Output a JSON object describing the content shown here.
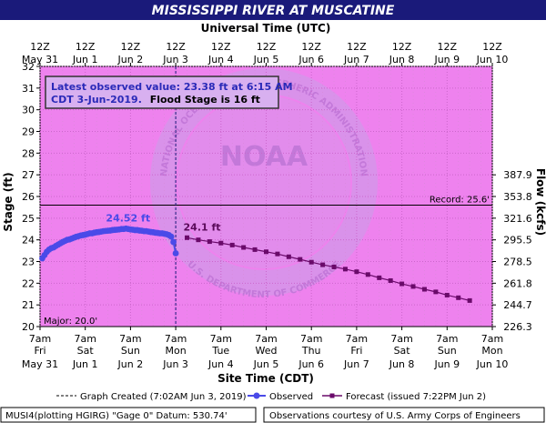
{
  "title": "MISSISSIPPI RIVER AT MUSCATINE",
  "top_axis_title": "Universal Time (UTC)",
  "bottom_axis_title": "Site Time (CDT)",
  "info_box": {
    "line1": "Latest observed value: 23.38 ft at 6:15 AM",
    "line2_a": "CDT 3-Jun-2019.",
    "line2_b": "Flood Stage is 16 ft"
  },
  "record_label": "Record: 25.6'",
  "major_label": "Major: 20.0'",
  "obs_peak_label": "24.52 ft",
  "fc_peak_label": "24.1 ft",
  "legend": {
    "created": "Graph Created (7:02AM Jun 3, 2019)",
    "observed": "Observed",
    "forecast": "Forecast (issued 7:22PM Jun 2)"
  },
  "footer": {
    "left": "MUSI4(plotting HGIRG) \"Gage 0\" Datum:  530.74'",
    "right": "Observations courtesy of U.S. Army Corps of Engineers"
  },
  "watermark": {
    "arc_text": "NATIONAL OCEANIC AND ATMOSPHERIC ADMINISTRATION",
    "bottom_text": "U.S. DEPARTMENT OF COMMERCE",
    "center_text": "NOAA"
  },
  "colors": {
    "plot_bg": "#ee82ee",
    "observed": "#4a4ae8",
    "forecast": "#6a0a6a",
    "title_bar": "#1a1a7a"
  },
  "chart_data": {
    "type": "line",
    "title": "MISSISSIPPI RIVER AT MUSCATINE",
    "ylabel": "Stage (ft)",
    "y2label": "Flow (kcfs)",
    "xlabel": "Site Time (CDT)",
    "ylim": [
      20,
      32
    ],
    "xlim_days": [
      0,
      10
    ],
    "y_ticks": [
      20,
      21,
      22,
      23,
      24,
      25,
      26,
      27,
      28,
      29,
      30,
      31,
      32
    ],
    "y2_ticks": [
      {
        "stage": 20,
        "label": "226.3"
      },
      {
        "stage": 21,
        "label": "244.7"
      },
      {
        "stage": 22,
        "label": "261.8"
      },
      {
        "stage": 23,
        "label": "278.5"
      },
      {
        "stage": 24,
        "label": "295.5"
      },
      {
        "stage": 25,
        "label": "321.6"
      },
      {
        "stage": 26,
        "label": "353.8"
      },
      {
        "stage": 27,
        "label": "387.9"
      }
    ],
    "x_ticks_bottom": [
      {
        "t": 0,
        "time": "7am",
        "day": "Fri",
        "date": "May 31"
      },
      {
        "t": 1,
        "time": "7am",
        "day": "Sat",
        "date": "Jun 1"
      },
      {
        "t": 2,
        "time": "7am",
        "day": "Sun",
        "date": "Jun 2"
      },
      {
        "t": 3,
        "time": "7am",
        "day": "Mon",
        "date": "Jun 3"
      },
      {
        "t": 4,
        "time": "7am",
        "day": "Tue",
        "date": "Jun 4"
      },
      {
        "t": 5,
        "time": "7am",
        "day": "Wed",
        "date": "Jun 5"
      },
      {
        "t": 6,
        "time": "7am",
        "day": "Thu",
        "date": "Jun 6"
      },
      {
        "t": 7,
        "time": "7am",
        "day": "Fri",
        "date": "Jun 7"
      },
      {
        "t": 8,
        "time": "7am",
        "day": "Sat",
        "date": "Jun 8"
      },
      {
        "t": 9,
        "time": "7am",
        "day": "Sun",
        "date": "Jun 9"
      },
      {
        "t": 10,
        "time": "7am",
        "day": "Mon",
        "date": "Jun 10"
      }
    ],
    "x_ticks_top": [
      {
        "t": 0,
        "time": "12Z",
        "date": "May 31"
      },
      {
        "t": 1,
        "time": "12Z",
        "date": "Jun 1"
      },
      {
        "t": 2,
        "time": "12Z",
        "date": "Jun 2"
      },
      {
        "t": 3,
        "time": "12Z",
        "date": "Jun 3"
      },
      {
        "t": 4,
        "time": "12Z",
        "date": "Jun 4"
      },
      {
        "t": 5,
        "time": "12Z",
        "date": "Jun 5"
      },
      {
        "t": 6,
        "time": "12Z",
        "date": "Jun 6"
      },
      {
        "t": 7,
        "time": "12Z",
        "date": "Jun 7"
      },
      {
        "t": 8,
        "time": "12Z",
        "date": "Jun 8"
      },
      {
        "t": 9,
        "time": "12Z",
        "date": "Jun 9"
      },
      {
        "t": 10,
        "time": "12Z",
        "date": "Jun 10"
      }
    ],
    "record_stage": 25.6,
    "major_stage": 20.0,
    "graph_created_t": 3.0,
    "series": [
      {
        "name": "Observed",
        "points": [
          [
            0.05,
            23.15
          ],
          [
            0.1,
            23.3
          ],
          [
            0.15,
            23.45
          ],
          [
            0.2,
            23.55
          ],
          [
            0.25,
            23.62
          ],
          [
            0.3,
            23.65
          ],
          [
            0.35,
            23.72
          ],
          [
            0.4,
            23.78
          ],
          [
            0.45,
            23.84
          ],
          [
            0.5,
            23.9
          ],
          [
            0.55,
            23.95
          ],
          [
            0.6,
            24.0
          ],
          [
            0.65,
            24.02
          ],
          [
            0.7,
            24.06
          ],
          [
            0.75,
            24.1
          ],
          [
            0.8,
            24.14
          ],
          [
            0.85,
            24.17
          ],
          [
            0.9,
            24.2
          ],
          [
            0.95,
            24.22
          ],
          [
            1.0,
            24.24
          ],
          [
            1.05,
            24.27
          ],
          [
            1.1,
            24.3
          ],
          [
            1.15,
            24.3
          ],
          [
            1.2,
            24.33
          ],
          [
            1.25,
            24.35
          ],
          [
            1.3,
            24.36
          ],
          [
            1.35,
            24.38
          ],
          [
            1.4,
            24.4
          ],
          [
            1.45,
            24.41
          ],
          [
            1.5,
            24.42
          ],
          [
            1.55,
            24.43
          ],
          [
            1.6,
            24.45
          ],
          [
            1.65,
            24.46
          ],
          [
            1.7,
            24.47
          ],
          [
            1.75,
            24.48
          ],
          [
            1.8,
            24.5
          ],
          [
            1.85,
            24.5
          ],
          [
            1.9,
            24.52
          ],
          [
            1.95,
            24.5
          ],
          [
            2.0,
            24.48
          ],
          [
            2.05,
            24.47
          ],
          [
            2.1,
            24.45
          ],
          [
            2.15,
            24.45
          ],
          [
            2.2,
            24.43
          ],
          [
            2.25,
            24.42
          ],
          [
            2.3,
            24.4
          ],
          [
            2.35,
            24.4
          ],
          [
            2.4,
            24.38
          ],
          [
            2.45,
            24.36
          ],
          [
            2.5,
            24.35
          ],
          [
            2.55,
            24.33
          ],
          [
            2.6,
            24.32
          ],
          [
            2.65,
            24.3
          ],
          [
            2.7,
            24.3
          ],
          [
            2.75,
            24.28
          ],
          [
            2.8,
            24.26
          ],
          [
            2.85,
            24.22
          ],
          [
            2.9,
            24.15
          ],
          [
            2.95,
            23.9
          ],
          [
            3.0,
            23.38
          ]
        ]
      },
      {
        "name": "Forecast",
        "points": [
          [
            3.25,
            24.1
          ],
          [
            3.5,
            24.0
          ],
          [
            3.75,
            23.92
          ],
          [
            4.0,
            23.85
          ],
          [
            4.25,
            23.76
          ],
          [
            4.5,
            23.65
          ],
          [
            4.75,
            23.55
          ],
          [
            5.0,
            23.45
          ],
          [
            5.25,
            23.35
          ],
          [
            5.5,
            23.22
          ],
          [
            5.75,
            23.1
          ],
          [
            6.0,
            22.97
          ],
          [
            6.25,
            22.85
          ],
          [
            6.5,
            22.75
          ],
          [
            6.75,
            22.65
          ],
          [
            7.0,
            22.53
          ],
          [
            7.25,
            22.4
          ],
          [
            7.5,
            22.25
          ],
          [
            7.75,
            22.12
          ],
          [
            8.0,
            21.97
          ],
          [
            8.25,
            21.85
          ],
          [
            8.5,
            21.72
          ],
          [
            8.75,
            21.6
          ],
          [
            9.0,
            21.45
          ],
          [
            9.25,
            21.33
          ],
          [
            9.5,
            21.2
          ]
        ]
      }
    ]
  }
}
